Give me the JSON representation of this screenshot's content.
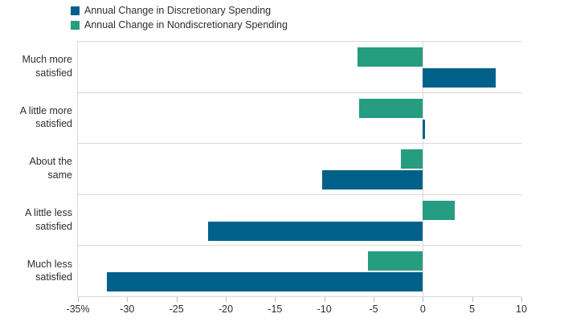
{
  "chart_data": {
    "type": "bar",
    "orientation": "horizontal",
    "title": "",
    "categories": [
      "Much more satisfied",
      "A little more satisfied",
      "About the same",
      "A little less satisfied",
      "Much less satisfied"
    ],
    "series": [
      {
        "key": "discretionary",
        "name": "Annual Change in Discretionary Spending",
        "color": "#00608a",
        "values": [
          7.4,
          0.2,
          -10.2,
          -21.8,
          -32.1
        ]
      },
      {
        "key": "nondiscretionary",
        "name": "Annual Change in Nondiscretionary Spending",
        "color": "#269c80",
        "values": [
          -6.6,
          -6.5,
          -2.2,
          3.2,
          -5.6
        ]
      }
    ],
    "value_unit": "percent",
    "xlim": [
      -35,
      10
    ],
    "xticks": [
      -35,
      -30,
      -25,
      -20,
      -15,
      -10,
      -5,
      0,
      5,
      10
    ],
    "xtick_labels": [
      "-35%",
      "-30",
      "-25",
      "-20",
      "-15",
      "-10",
      "-5",
      "0",
      "5",
      "10"
    ],
    "legend_position": "top-left",
    "grid": {
      "row_separators": true,
      "zero_line": true,
      "left_border": true,
      "top_border": true
    },
    "row_display_order": [
      1,
      0
    ],
    "colors": {
      "gridline": "#d9d9d9",
      "tick": "#bdbdbd",
      "text": "#2a2d34",
      "background": "#ffffff"
    }
  }
}
